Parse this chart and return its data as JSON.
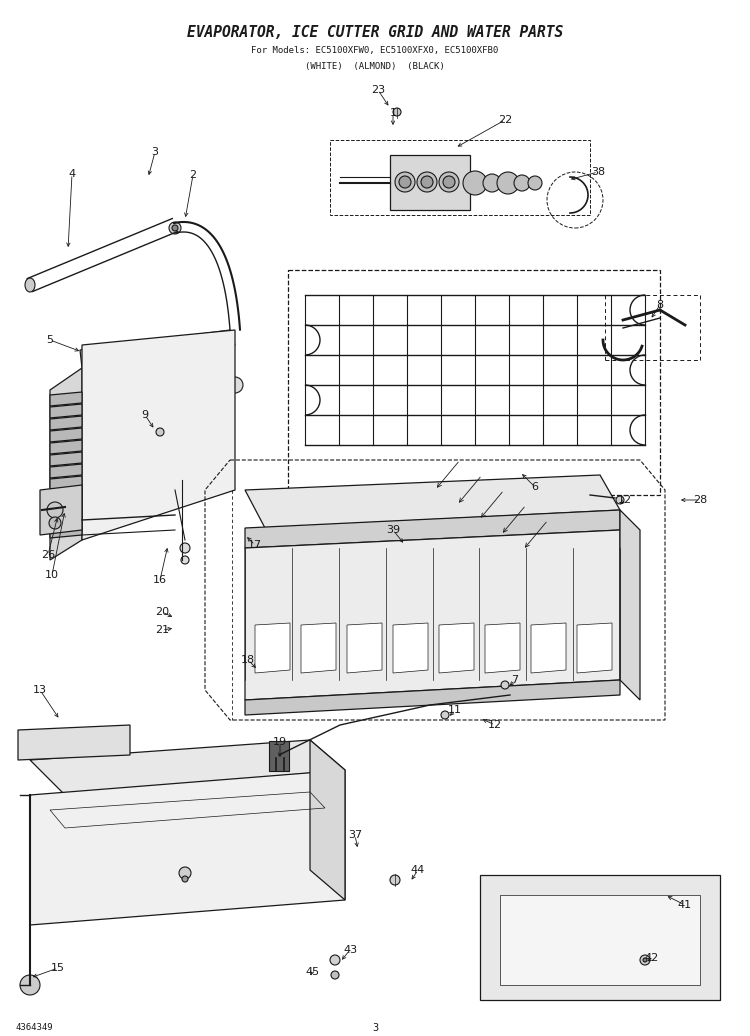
{
  "title": "EVAPORATOR, ICE CUTTER GRID AND WATER PARTS",
  "subtitle1": "For Models: EC5100XFW0, EC5100XFX0, EC5100XFB0",
  "subtitle2": "(WHITE)  (ALMOND)  (BLACK)",
  "doc_number": "4364349",
  "page_number": "3",
  "bg_color": "#ffffff",
  "lc": "#1a1a1a",
  "title_fontsize": 10.5,
  "sub_fontsize": 6.5,
  "label_fontsize": 8,
  "footer_fontsize": 6.5
}
